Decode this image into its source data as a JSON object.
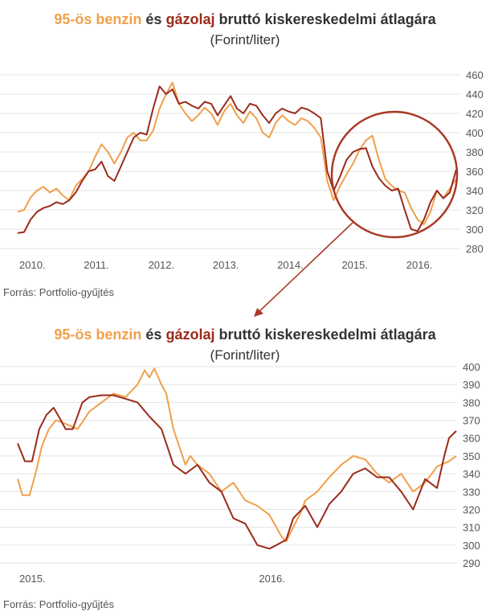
{
  "title": {
    "petrol": "95-ös benzin",
    "and": "és",
    "diesel": "gázolaj",
    "rest": "bruttó kiskereskedelmi átlagára"
  },
  "subtitle": "(Forint/liter)",
  "source": "Forrás: Portfolio-gyűjtés",
  "colors": {
    "petrol": "#f0a04b",
    "diesel": "#9b2a1a",
    "grid": "#e3e3e3",
    "circle": "#a83a26"
  },
  "chart_data": [
    {
      "type": "line",
      "x_unit": "year",
      "ylim": [
        280,
        460
      ],
      "yticks": [
        460,
        440,
        420,
        400,
        380,
        360,
        340,
        320,
        300,
        280
      ],
      "xticks": [
        "2010.",
        "2011.",
        "2012.",
        "2013.",
        "2014.",
        "2015.",
        "2016."
      ],
      "xlim": [
        2010.0,
        2016.85
      ],
      "series": [
        {
          "name": "95-ös benzin",
          "key": "petrol",
          "x": [
            2010.0,
            2010.1,
            2010.2,
            2010.3,
            2010.4,
            2010.5,
            2010.6,
            2010.7,
            2010.8,
            2010.9,
            2011.0,
            2011.1,
            2011.2,
            2011.3,
            2011.4,
            2011.5,
            2011.6,
            2011.7,
            2011.8,
            2011.9,
            2012.0,
            2012.1,
            2012.2,
            2012.3,
            2012.4,
            2012.5,
            2012.6,
            2012.7,
            2012.8,
            2012.9,
            2013.0,
            2013.1,
            2013.2,
            2013.3,
            2013.4,
            2013.5,
            2013.6,
            2013.7,
            2013.8,
            2013.9,
            2014.0,
            2014.1,
            2014.2,
            2014.3,
            2014.4,
            2014.5,
            2014.6,
            2014.7,
            2014.8,
            2014.9,
            2015.0,
            2015.1,
            2015.2,
            2015.3,
            2015.4,
            2015.5,
            2015.6,
            2015.7,
            2015.8,
            2015.9,
            2016.0,
            2016.1,
            2016.2,
            2016.3,
            2016.4,
            2016.5,
            2016.6,
            2016.7,
            2016.8
          ],
          "values": [
            318,
            320,
            333,
            340,
            344,
            338,
            342,
            335,
            330,
            345,
            352,
            360,
            375,
            388,
            380,
            368,
            380,
            395,
            400,
            392,
            392,
            402,
            425,
            440,
            452,
            430,
            420,
            412,
            418,
            426,
            420,
            408,
            422,
            430,
            418,
            410,
            422,
            415,
            400,
            395,
            410,
            418,
            412,
            408,
            415,
            412,
            405,
            395,
            350,
            330,
            345,
            357,
            368,
            382,
            392,
            397,
            372,
            352,
            345,
            340,
            338,
            322,
            310,
            305,
            318,
            340,
            332,
            342,
            352
          ]
        },
        {
          "name": "gázolaj",
          "key": "diesel",
          "x": [
            2010.0,
            2010.1,
            2010.2,
            2010.3,
            2010.4,
            2010.5,
            2010.6,
            2010.7,
            2010.8,
            2010.9,
            2011.0,
            2011.1,
            2011.2,
            2011.3,
            2011.4,
            2011.5,
            2011.6,
            2011.7,
            2011.8,
            2011.9,
            2012.0,
            2012.1,
            2012.2,
            2012.3,
            2012.4,
            2012.5,
            2012.6,
            2012.7,
            2012.8,
            2012.9,
            2013.0,
            2013.1,
            2013.2,
            2013.3,
            2013.4,
            2013.5,
            2013.6,
            2013.7,
            2013.8,
            2013.9,
            2014.0,
            2014.1,
            2014.2,
            2014.3,
            2014.4,
            2014.5,
            2014.6,
            2014.7,
            2014.8,
            2014.9,
            2015.0,
            2015.1,
            2015.2,
            2015.3,
            2015.4,
            2015.5,
            2015.6,
            2015.7,
            2015.8,
            2015.9,
            2016.0,
            2016.1,
            2016.2,
            2016.3,
            2016.4,
            2016.5,
            2016.6,
            2016.7,
            2016.8
          ],
          "values": [
            296,
            297,
            310,
            318,
            322,
            324,
            328,
            326,
            330,
            338,
            350,
            360,
            362,
            370,
            355,
            350,
            365,
            380,
            395,
            400,
            398,
            425,
            448,
            440,
            445,
            430,
            432,
            428,
            425,
            432,
            430,
            418,
            428,
            438,
            425,
            420,
            430,
            428,
            418,
            410,
            420,
            425,
            422,
            420,
            426,
            424,
            420,
            415,
            360,
            340,
            355,
            372,
            380,
            383,
            384,
            365,
            353,
            345,
            340,
            342,
            320,
            300,
            298,
            310,
            328,
            340,
            332,
            338,
            362
          ]
        }
      ]
    },
    {
      "type": "line",
      "x_unit": "year",
      "ylim": [
        290,
        400
      ],
      "yticks": [
        400,
        390,
        380,
        370,
        360,
        350,
        340,
        330,
        320,
        310,
        300,
        290
      ],
      "xticks": [
        "2015.",
        "2016."
      ],
      "xlim": [
        2015.0,
        2016.83
      ],
      "series": [
        {
          "name": "95-ös benzin",
          "key": "petrol",
          "x": [
            2015.0,
            2015.02,
            2015.05,
            2015.08,
            2015.1,
            2015.13,
            2015.16,
            2015.2,
            2015.25,
            2015.3,
            2015.35,
            2015.4,
            2015.45,
            2015.5,
            2015.53,
            2015.55,
            2015.57,
            2015.6,
            2015.62,
            2015.65,
            2015.7,
            2015.72,
            2015.75,
            2015.8,
            2015.85,
            2015.9,
            2015.95,
            2016.0,
            2016.05,
            2016.1,
            2016.12,
            2016.15,
            2016.18,
            2016.2,
            2016.25,
            2016.3,
            2016.35,
            2016.4,
            2016.45,
            2016.5,
            2016.55,
            2016.6,
            2016.65,
            2016.7,
            2016.75,
            2016.8,
            2016.83
          ],
          "values": [
            337,
            328,
            328,
            343,
            355,
            365,
            370,
            368,
            365,
            375,
            380,
            385,
            383,
            390,
            398,
            394,
            399,
            390,
            385,
            365,
            345,
            350,
            345,
            340,
            330,
            335,
            325,
            322,
            317,
            305,
            302,
            310,
            318,
            325,
            330,
            338,
            345,
            350,
            348,
            340,
            335,
            340,
            330,
            335,
            344,
            347,
            350
          ]
        },
        {
          "name": "gázolaj",
          "key": "diesel",
          "x": [
            2015.0,
            2015.03,
            2015.06,
            2015.09,
            2015.12,
            2015.15,
            2015.18,
            2015.2,
            2015.23,
            2015.27,
            2015.3,
            2015.35,
            2015.4,
            2015.45,
            2015.5,
            2015.55,
            2015.6,
            2015.65,
            2015.7,
            2015.75,
            2015.8,
            2015.85,
            2015.9,
            2015.95,
            2016.0,
            2016.05,
            2016.08,
            2016.12,
            2016.15,
            2016.2,
            2016.25,
            2016.3,
            2016.35,
            2016.4,
            2016.45,
            2016.5,
            2016.55,
            2016.6,
            2016.65,
            2016.7,
            2016.75,
            2016.78,
            2016.8,
            2016.83
          ],
          "values": [
            357,
            347,
            347,
            365,
            373,
            377,
            370,
            365,
            365,
            380,
            383,
            384,
            384,
            382,
            380,
            372,
            365,
            345,
            340,
            345,
            335,
            330,
            315,
            312,
            300,
            298,
            300,
            303,
            315,
            322,
            310,
            323,
            330,
            340,
            343,
            338,
            338,
            330,
            320,
            337,
            332,
            350,
            360,
            364
          ]
        }
      ]
    }
  ]
}
